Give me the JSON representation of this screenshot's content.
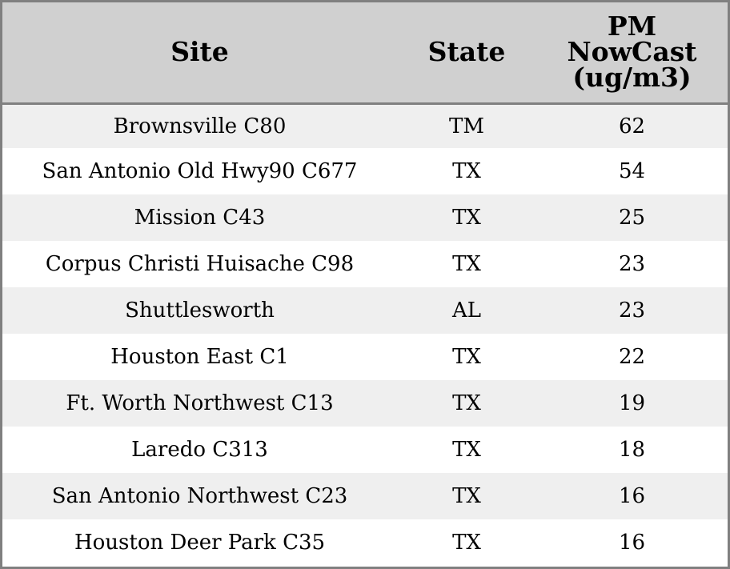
{
  "chart_data": {
    "type": "table",
    "columns": [
      "Site",
      "State",
      "PM NowCast (ug/m3)"
    ],
    "header_lines": {
      "site": "Site",
      "state": "State",
      "pm": [
        "PM",
        "NowCast",
        "(ug/m3)"
      ]
    },
    "rows": [
      {
        "site": "Brownsville C80",
        "state": "TM",
        "pm": 62
      },
      {
        "site": "San Antonio Old Hwy90 C677",
        "state": "TX",
        "pm": 54
      },
      {
        "site": "Mission C43",
        "state": "TX",
        "pm": 25
      },
      {
        "site": "Corpus Christi Huisache C98",
        "state": "TX",
        "pm": 23
      },
      {
        "site": "Shuttlesworth",
        "state": "AL",
        "pm": 23
      },
      {
        "site": "Houston East C1",
        "state": "TX",
        "pm": 22
      },
      {
        "site": "Ft. Worth Northwest C13",
        "state": "TX",
        "pm": 19
      },
      {
        "site": "Laredo C313",
        "state": "TX",
        "pm": 18
      },
      {
        "site": "San Antonio Northwest C23",
        "state": "TX",
        "pm": 16
      },
      {
        "site": "Houston Deer Park C35",
        "state": "TX",
        "pm": 16
      }
    ]
  },
  "colors": {
    "header_background": "#d0d0d0",
    "stripe_background": "#efefef",
    "border": "#808080"
  }
}
